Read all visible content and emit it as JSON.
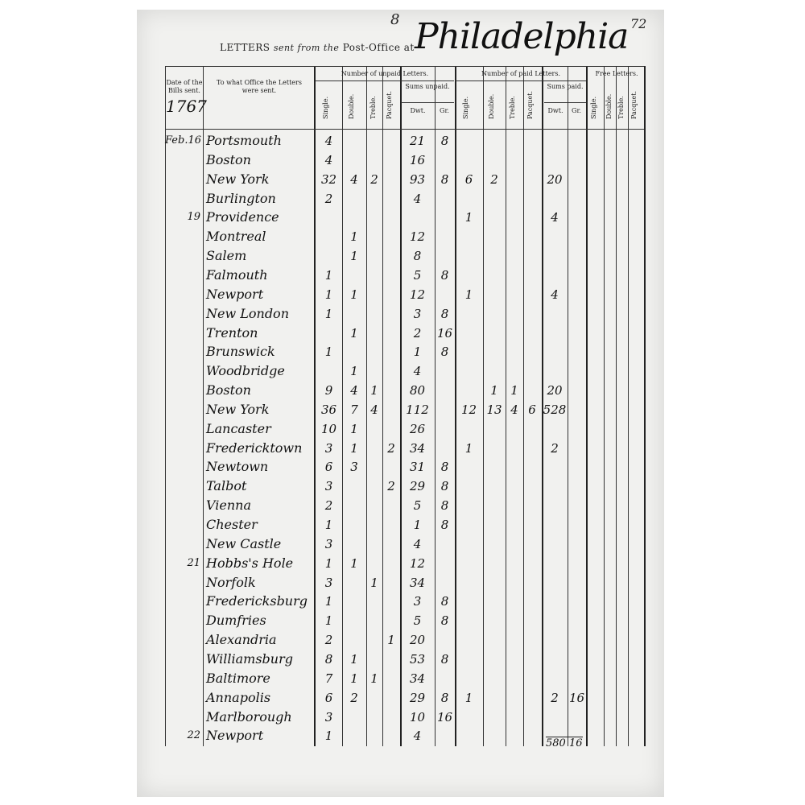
{
  "header": {
    "folio": "8",
    "page_number": "72",
    "title_prefix": "LETTERS",
    "title_italic": "sent from the",
    "title_suffix": "Post-Office at",
    "city": "Philadelphia"
  },
  "columns": {
    "date": "Date of the Bills sent.",
    "office": "To what Office the Letters were sent.",
    "unpaid_group": "Number of unpaid Letters.",
    "paid_group": "Number of paid Letters.",
    "free_group": "Free Letters.",
    "single": "Single.",
    "double": "Double.",
    "treble": "Treble.",
    "pacquet": "Pacquet.",
    "sums_unpaid": "Sums unpaid.",
    "sums_paid": "Sums paid.",
    "dwt": "Dwt.",
    "gr": "Gr."
  },
  "year": "1767",
  "rows": [
    [
      "Feb.16",
      "Portsmouth",
      "4",
      "",
      "",
      "",
      "21",
      "8",
      "",
      "",
      "",
      "",
      "",
      ""
    ],
    [
      "",
      "Boston",
      "4",
      "",
      "",
      "",
      "16",
      "",
      "",
      "",
      "",
      "",
      "",
      ""
    ],
    [
      "",
      "New York",
      "32",
      "4",
      "2",
      "",
      "93",
      "8",
      "6",
      "2",
      "",
      "",
      "20",
      ""
    ],
    [
      "",
      "Burlington",
      "2",
      "",
      "",
      "",
      "4",
      "",
      "",
      "",
      "",
      "",
      "",
      ""
    ],
    [
      "19",
      "Providence",
      "",
      "",
      "",
      "",
      "",
      "",
      "1",
      "",
      "",
      "",
      "4",
      ""
    ],
    [
      "",
      "Montreal",
      "",
      "1",
      "",
      "",
      "12",
      "",
      "",
      "",
      "",
      "",
      "",
      ""
    ],
    [
      "",
      "Salem",
      "",
      "1",
      "",
      "",
      "8",
      "",
      "",
      "",
      "",
      "",
      "",
      ""
    ],
    [
      "",
      "Falmouth",
      "1",
      "",
      "",
      "",
      "5",
      "8",
      "",
      "",
      "",
      "",
      "",
      ""
    ],
    [
      "",
      "Newport",
      "1",
      "1",
      "",
      "",
      "12",
      "",
      "1",
      "",
      "",
      "",
      "4",
      ""
    ],
    [
      "",
      "New London",
      "1",
      "",
      "",
      "",
      "3",
      "8",
      "",
      "",
      "",
      "",
      "",
      ""
    ],
    [
      "",
      "Trenton",
      "",
      "1",
      "",
      "",
      "2",
      "16",
      "",
      "",
      "",
      "",
      "",
      ""
    ],
    [
      "",
      "Brunswick",
      "1",
      "",
      "",
      "",
      "1",
      "8",
      "",
      "",
      "",
      "",
      "",
      ""
    ],
    [
      "",
      "Woodbridge",
      "",
      "1",
      "",
      "",
      "4",
      "",
      "",
      "",
      "",
      "",
      "",
      ""
    ],
    [
      "",
      "Boston",
      "9",
      "4",
      "1",
      "",
      "80",
      "",
      "",
      "1",
      "1",
      "",
      "20",
      ""
    ],
    [
      "",
      "New York",
      "36",
      "7",
      "4",
      "",
      "112",
      "",
      "12",
      "13",
      "4",
      "6",
      "528",
      ""
    ],
    [
      "",
      "Lancaster",
      "10",
      "1",
      "",
      "",
      "26",
      "",
      "",
      "",
      "",
      "",
      "",
      ""
    ],
    [
      "",
      "Fredericktown",
      "3",
      "1",
      "",
      "2",
      "34",
      "",
      "1",
      "",
      "",
      "",
      "2",
      ""
    ],
    [
      "",
      "Newtown",
      "6",
      "3",
      "",
      "",
      "31",
      "8",
      "",
      "",
      "",
      "",
      "",
      ""
    ],
    [
      "",
      "Talbot",
      "3",
      "",
      "",
      "2",
      "29",
      "8",
      "",
      "",
      "",
      "",
      "",
      ""
    ],
    [
      "",
      "Vienna",
      "2",
      "",
      "",
      "",
      "5",
      "8",
      "",
      "",
      "",
      "",
      "",
      ""
    ],
    [
      "",
      "Chester",
      "1",
      "",
      "",
      "",
      "1",
      "8",
      "",
      "",
      "",
      "",
      "",
      ""
    ],
    [
      "",
      "New Castle",
      "3",
      "",
      "",
      "",
      "4",
      "",
      "",
      "",
      "",
      "",
      "",
      ""
    ],
    [
      "21",
      "Hobbs's Hole",
      "1",
      "1",
      "",
      "",
      "12",
      "",
      "",
      "",
      "",
      "",
      "",
      ""
    ],
    [
      "",
      "Norfolk",
      "3",
      "",
      "1",
      "",
      "34",
      "",
      "",
      "",
      "",
      "",
      "",
      ""
    ],
    [
      "",
      "Fredericksburg",
      "1",
      "",
      "",
      "",
      "3",
      "8",
      "",
      "",
      "",
      "",
      "",
      ""
    ],
    [
      "",
      "Dumfries",
      "1",
      "",
      "",
      "",
      "5",
      "8",
      "",
      "",
      "",
      "",
      "",
      ""
    ],
    [
      "",
      "Alexandria",
      "2",
      "",
      "",
      "1",
      "20",
      "",
      "",
      "",
      "",
      "",
      "",
      ""
    ],
    [
      "",
      "Williamsburg",
      "8",
      "1",
      "",
      "",
      "53",
      "8",
      "",
      "",
      "",
      "",
      "",
      ""
    ],
    [
      "",
      "Baltimore",
      "7",
      "1",
      "1",
      "",
      "34",
      "",
      "",
      "",
      "",
      "",
      "",
      ""
    ],
    [
      "",
      "Annapolis",
      "6",
      "2",
      "",
      "",
      "29",
      "8",
      "1",
      "",
      "",
      "",
      "2",
      "16"
    ],
    [
      "",
      "Marlborough",
      "3",
      "",
      "",
      "",
      "10",
      "16",
      "",
      "",
      "",
      "",
      "",
      ""
    ],
    [
      "22",
      "Newport",
      "1",
      "",
      "",
      "",
      "4",
      "",
      "",
      "",
      "",
      "",
      "",
      ""
    ]
  ],
  "paid_total": "580 16"
}
